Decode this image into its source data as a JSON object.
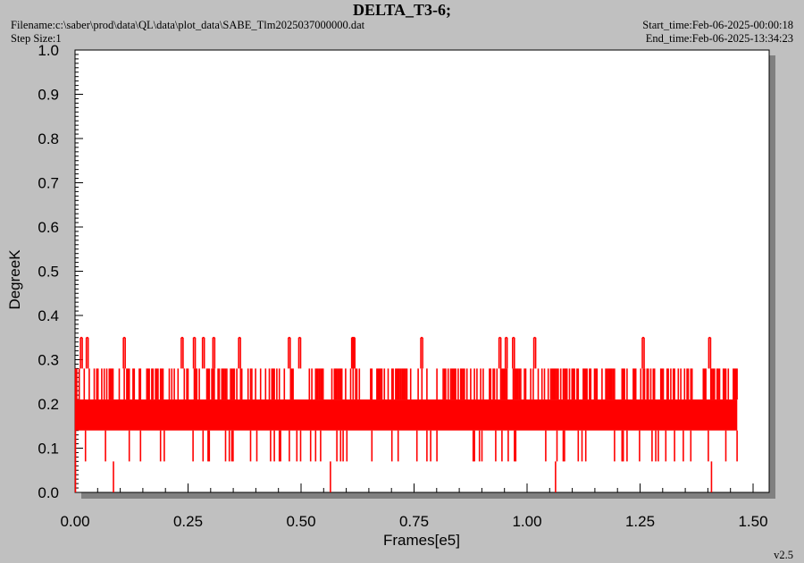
{
  "header": {
    "title": "DELTA_T3-6;",
    "filename": "Filename:c:\\saber\\prod\\data\\QL\\data\\plot_data\\SABE_Tlm2025037000000.dat",
    "step_size": "Step Size:1",
    "start_time": "Start_time:Feb-06-2025-00:00:18",
    "end_time": "End_time:Feb-06-2025-13:34:23"
  },
  "footer": {
    "version": "v2.5"
  },
  "chart_data": {
    "type": "line",
    "xlabel": "Frames[e5]",
    "ylabel": "DegreeK",
    "xlim": [
      0,
      1.5
    ],
    "ylim": [
      0,
      1.0
    ],
    "x_ticks": [
      "0.00",
      "0.25",
      "0.50",
      "0.75",
      "1.00",
      "1.25",
      "1.50"
    ],
    "y_ticks": [
      "0.0",
      "0.1",
      "0.2",
      "0.3",
      "0.4",
      "0.5",
      "0.6",
      "0.7",
      "0.8",
      "0.9",
      "1.0"
    ],
    "grid": false,
    "color": "#ff0000",
    "series": [
      {
        "x_range": [
          0,
          1.465
        ],
        "levels": [
          0.0,
          0.07,
          0.14,
          0.21,
          0.28,
          0.35
        ],
        "band_low": 0.14,
        "band_high": 0.21,
        "upper_spikes": [
          0.012,
          0.025,
          0.107,
          0.235,
          0.262,
          0.282,
          0.305,
          0.362,
          0.472,
          0.495,
          0.612,
          0.615,
          0.765,
          0.938,
          0.952,
          0.968,
          1.015,
          1.255,
          1.402
        ],
        "lower_spikes": [
          0.085,
          0.565,
          1.063,
          1.408
        ]
      }
    ]
  }
}
